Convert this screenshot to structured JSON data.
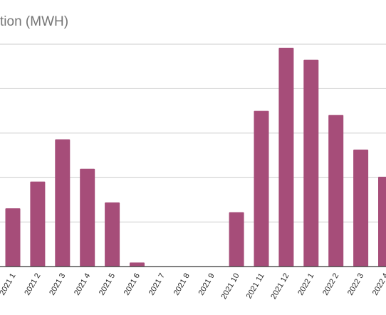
{
  "chart_data": {
    "type": "bar",
    "title": "tion (MWH)",
    "xlabel": "",
    "ylabel": "",
    "categories": [
      "2021 1",
      "2021 2",
      "2021 3",
      "2021 4",
      "2021 5",
      "2021 6",
      "2021 7",
      "2021 8",
      "2021 9",
      "2021 10",
      "2021 11",
      "2021 12",
      "2022 1",
      "2022 2",
      "2022 3",
      "2022 4"
    ],
    "values": [
      1.31,
      1.91,
      2.86,
      2.2,
      1.44,
      0.09,
      0,
      0,
      0,
      1.22,
      3.5,
      4.92,
      4.65,
      3.41,
      2.63,
      2.02
    ],
    "ylim": [
      0,
      5
    ],
    "grid": true,
    "legend": "none",
    "bar_color": "#a64d79",
    "grid_color": "#cccccc",
    "axis_color": "#333333"
  }
}
